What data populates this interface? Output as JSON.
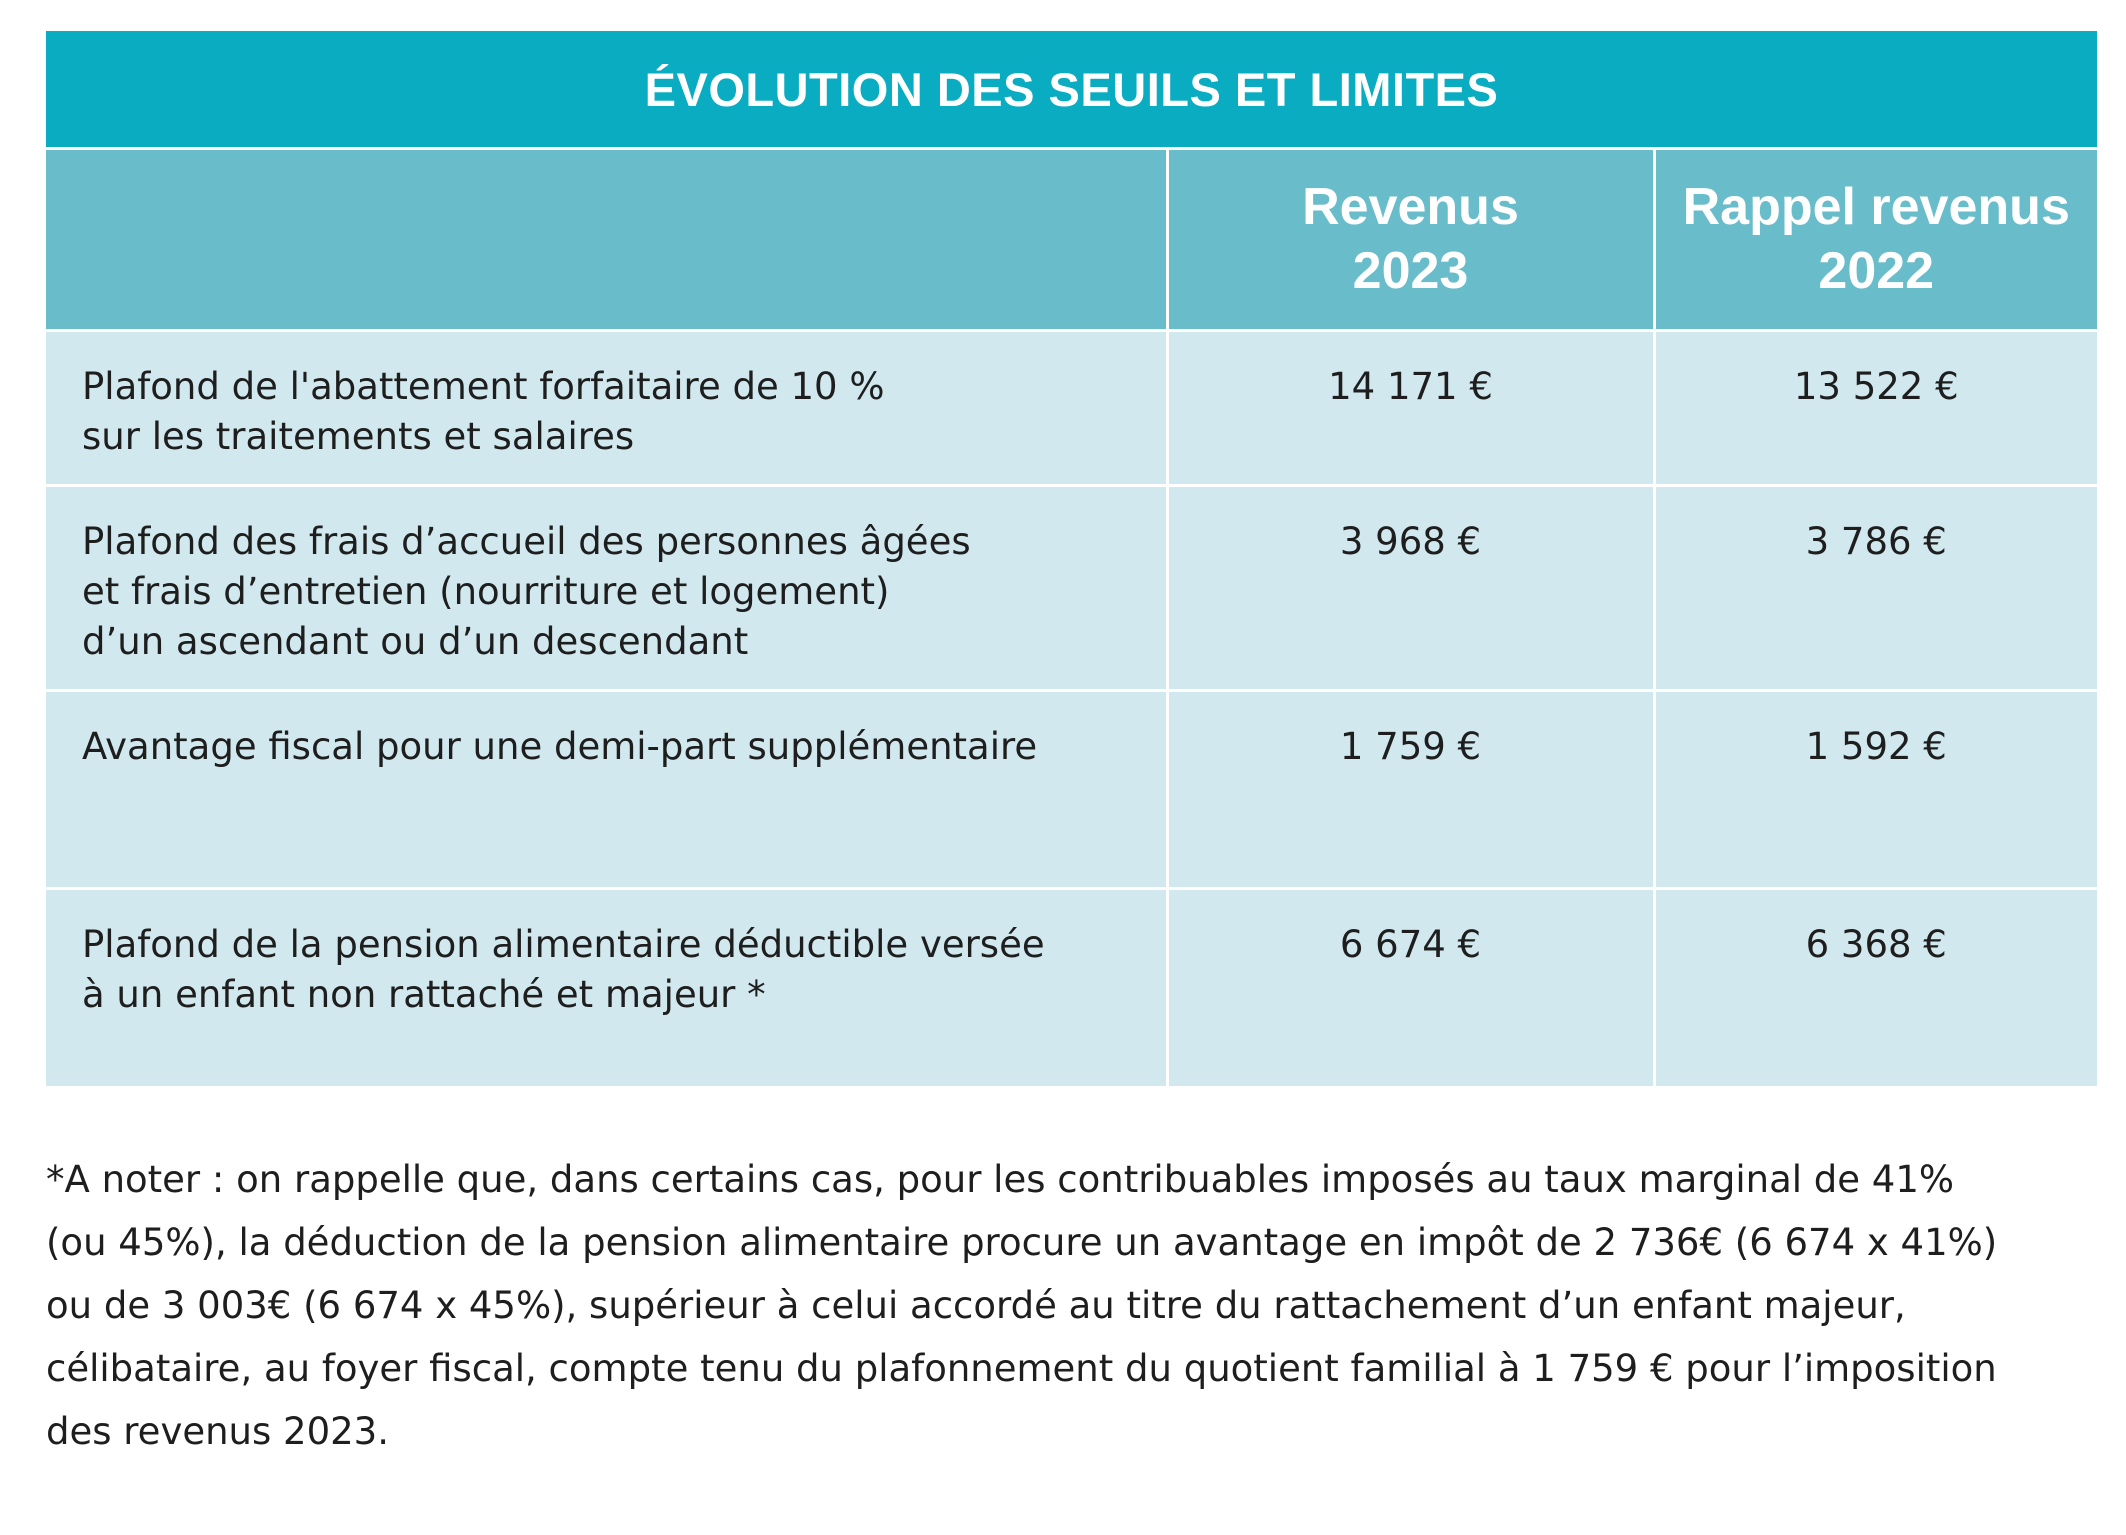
{
  "table": {
    "title": "ÉVOLUTION DES SEUILS ET LIMITES",
    "headers": [
      "",
      "Revenus 2023",
      "Rappel revenus 2022"
    ],
    "header_lines": {
      "col2": [
        "Revenus",
        "2023"
      ],
      "col3": [
        "Rappel revenus",
        "2022"
      ]
    },
    "rows": [
      {
        "label_lines": [
          "Plafond de l'abattement forfaitaire de 10 %",
          "sur les traitements et salaires"
        ],
        "revenus_2023": "14 171 €",
        "revenus_2022": "13 522 €"
      },
      {
        "label_lines": [
          "Plafond des frais d’accueil des personnes âgées",
          "et frais d’entretien (nourriture et logement)",
          "d’un ascendant ou d’un descendant"
        ],
        "revenus_2023": "3 968 €",
        "revenus_2022": "3 786 €"
      },
      {
        "label_lines": [
          "Avantage fiscal pour une demi-part supplémentaire"
        ],
        "revenus_2023": "1 759 €",
        "revenus_2022": "1 592 €"
      },
      {
        "label_lines": [
          "Plafond de la pension alimentaire déductible versée",
          "à un enfant non rattaché et majeur *"
        ],
        "revenus_2023": "6 674 €",
        "revenus_2022": "6 368 €"
      }
    ]
  },
  "footnote": {
    "lines": [
      "*A noter : on rappelle que, dans certains cas, pour les contribuables imposés au taux marginal de 41%",
      "(ou 45%), la déduction de la pension alimentaire procure un avantage en impôt de 2 736€ (6 674 x 41%)",
      "ou de 3 003€ (6 674 x 45%), supérieur à celui accordé au titre du rattachement d’un enfant majeur,",
      "célibataire, au foyer fiscal, compte tenu du plafonnement du quotient familial à 1 759 € pour l’imposition",
      "des revenus 2023."
    ]
  },
  "colors": {
    "title_bar": "#0aacc1",
    "header_row": "#69bcc9",
    "body_rows": "#d1e8ee",
    "text": "#1e1e1e"
  }
}
